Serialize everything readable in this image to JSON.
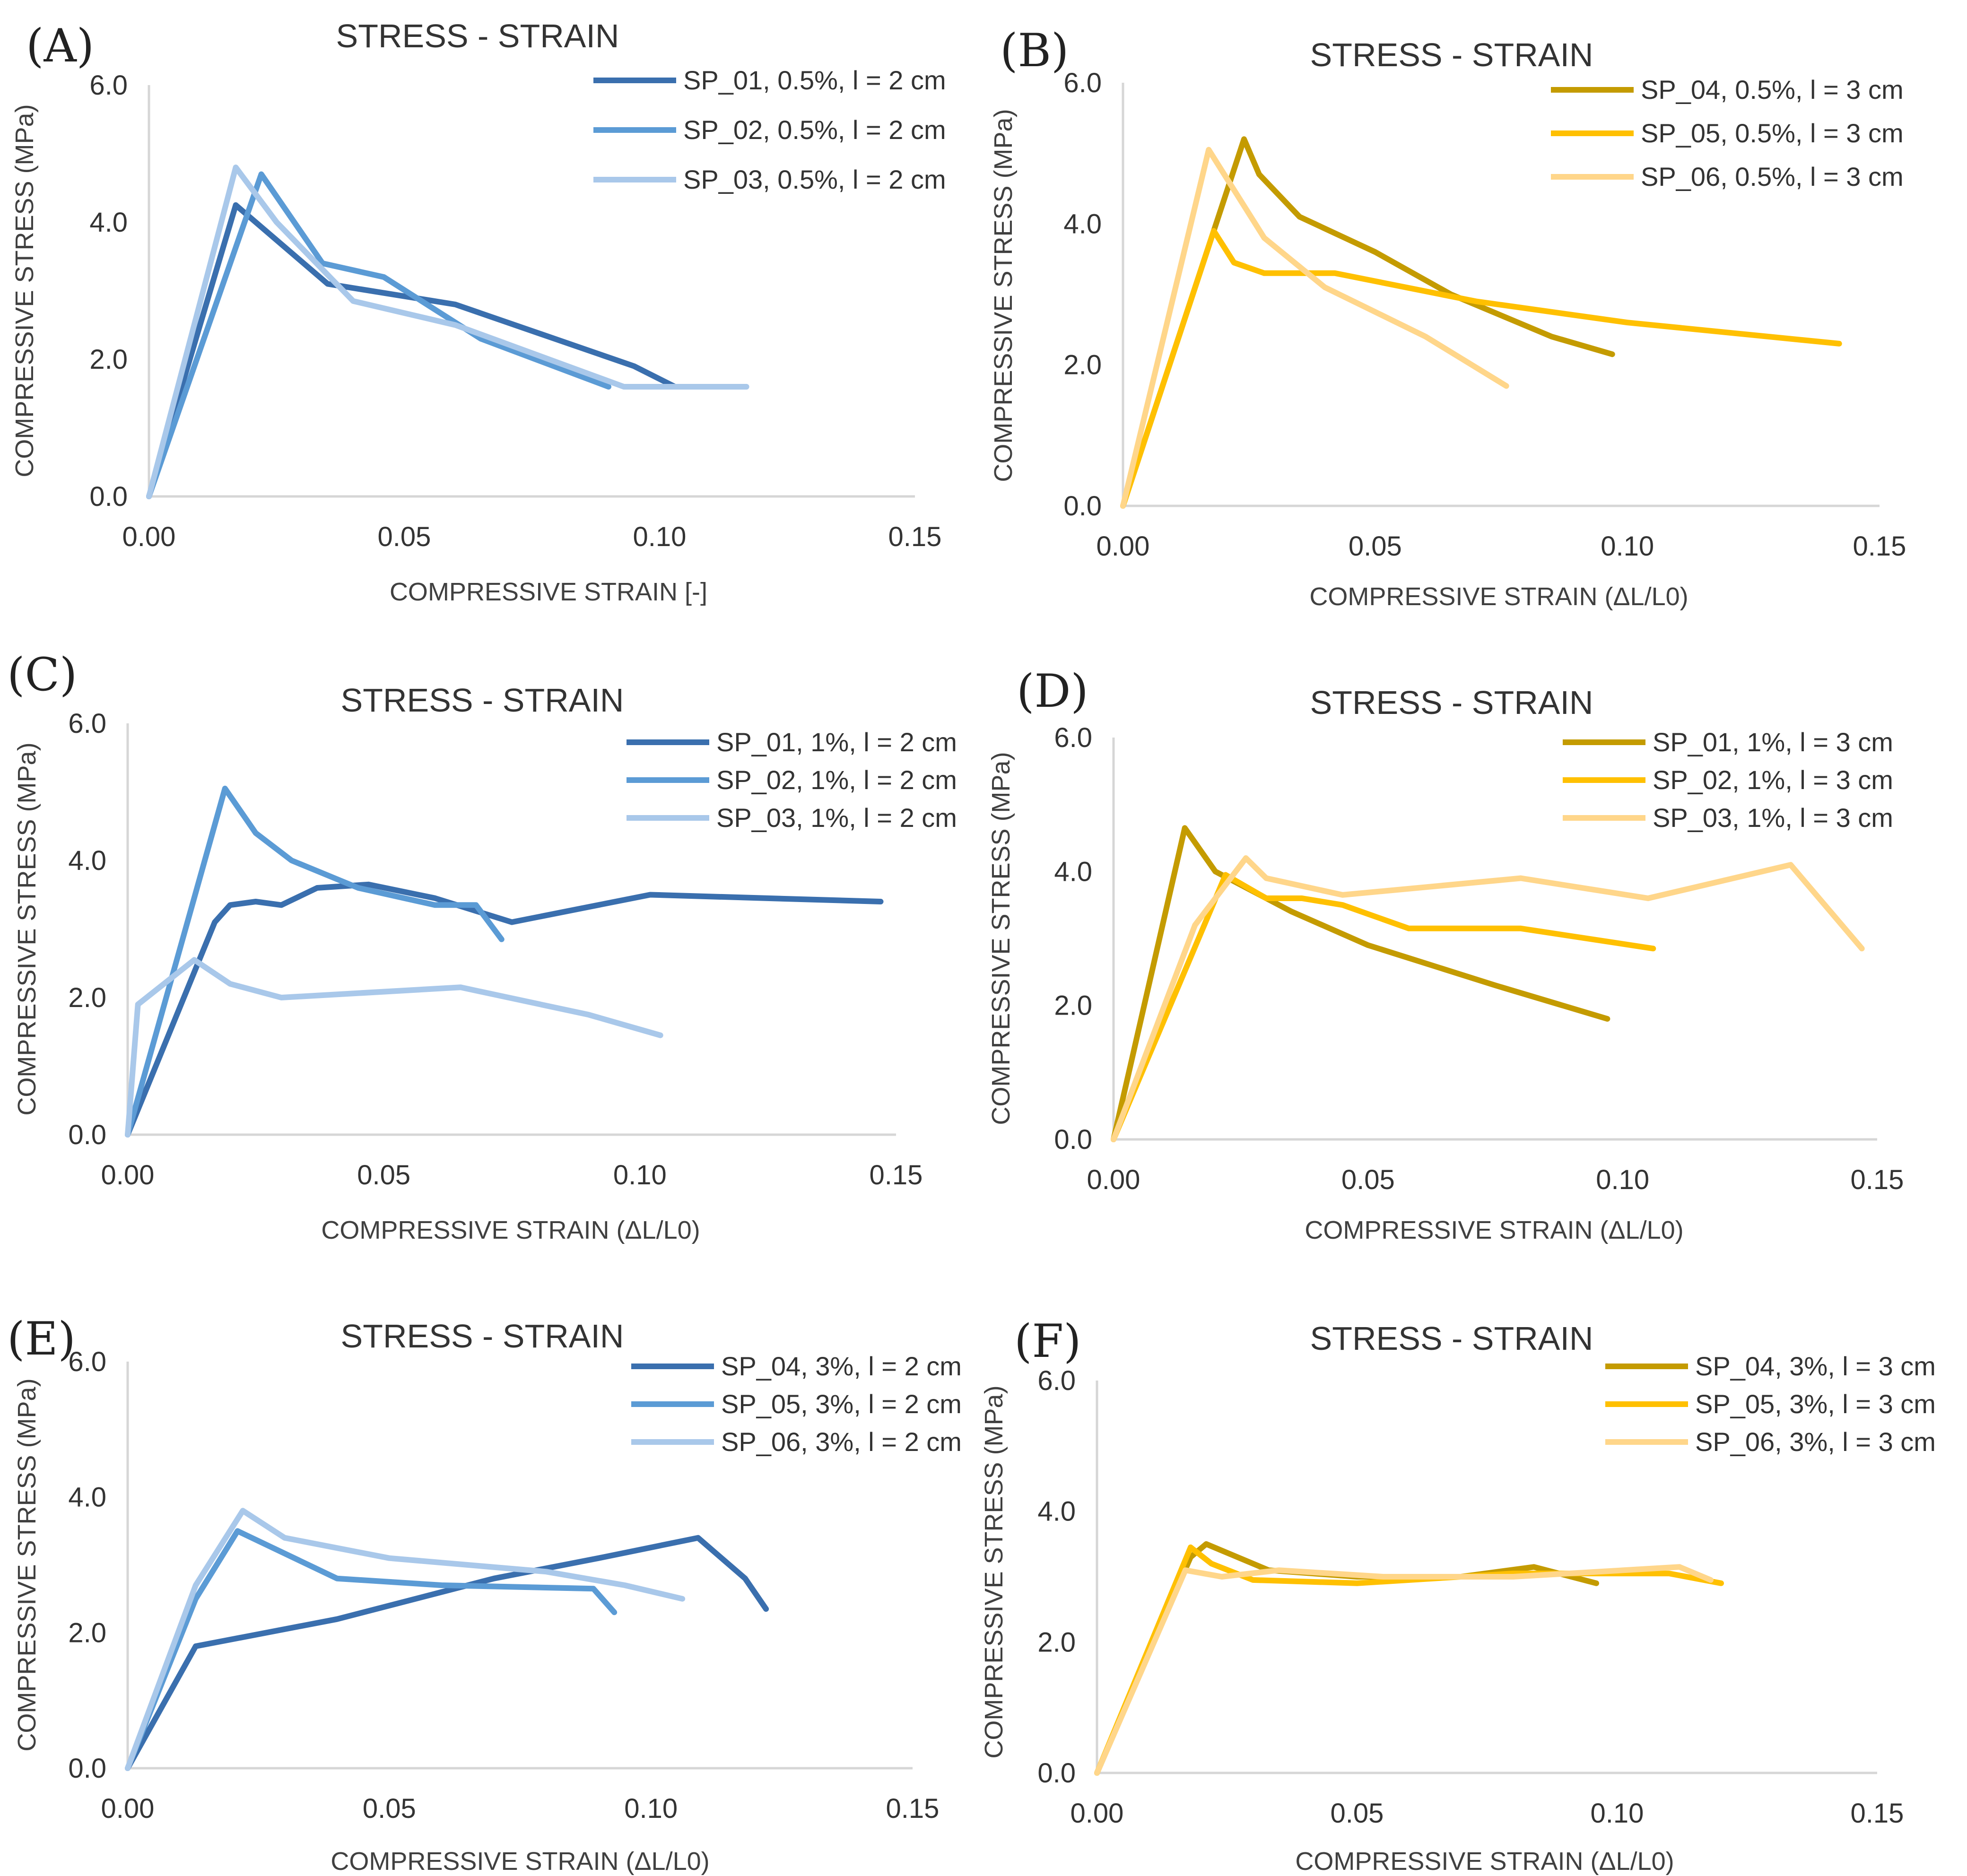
{
  "colors": {
    "blue_dark": "#3a6fae",
    "blue_mid": "#5b9bd5",
    "blue_light": "#a9c8ea",
    "gold_dark": "#c49b00",
    "gold_mid": "#ffc000",
    "gold_light": "#ffd68a",
    "text": "#333333",
    "axis": "#d6d6d6"
  },
  "chart_data": [
    {
      "panel": "(A)",
      "type": "line",
      "title": "STRESS - STRAIN",
      "xlabel": "COMPRESSIVE  STRAIN [-]",
      "ylabel": "COMPRESSIVE STRESS (MPa)",
      "xlim": [
        0,
        0.15
      ],
      "ylim": [
        0,
        6
      ],
      "xticks": [
        "0.00",
        "0.05",
        "0.10",
        "0.15"
      ],
      "yticks": [
        "0.0",
        "2.0",
        "4.0",
        "6.0"
      ],
      "legend_position": "top-right",
      "series": [
        {
          "name": "SP_01, 0.5%, l = 2 cm",
          "color": "blue_dark",
          "x": [
            0,
            0.017,
            0.035,
            0.06,
            0.095,
            0.103,
            0.115
          ],
          "y": [
            0,
            4.25,
            3.1,
            2.8,
            1.9,
            1.6,
            1.6
          ]
        },
        {
          "name": "SP_02, 0.5%, l = 2 cm",
          "color": "blue_mid",
          "x": [
            0,
            0.022,
            0.034,
            0.046,
            0.065,
            0.09
          ],
          "y": [
            0,
            4.7,
            3.4,
            3.2,
            2.3,
            1.6
          ]
        },
        {
          "name": "SP_03, 0.5%, l = 2 cm",
          "color": "blue_light",
          "x": [
            0,
            0.017,
            0.025,
            0.04,
            0.06,
            0.093,
            0.117
          ],
          "y": [
            0,
            4.8,
            4.0,
            2.85,
            2.5,
            1.6,
            1.6
          ]
        }
      ]
    },
    {
      "panel": "(B)",
      "type": "line",
      "title": "STRESS - STRAIN",
      "xlabel": "COMPRESSIVE STRAIN (ΔL/L0)",
      "ylabel": "COMPRESSIVE STRESS (MPa)",
      "xlim": [
        0,
        0.15
      ],
      "ylim": [
        0,
        6
      ],
      "xticks": [
        "0.00",
        "0.05",
        "0.10",
        "0.15"
      ],
      "yticks": [
        "0.0",
        "2.0",
        "4.0",
        "6.0"
      ],
      "legend_position": "top-right",
      "series": [
        {
          "name": "SP_04, 0.5%, l = 3 cm",
          "color": "gold_dark",
          "x": [
            0,
            0.024,
            0.027,
            0.035,
            0.05,
            0.065,
            0.085,
            0.097
          ],
          "y": [
            0,
            5.2,
            4.7,
            4.1,
            3.6,
            3.0,
            2.4,
            2.15
          ]
        },
        {
          "name": "SP_05, 0.5%, l = 3 cm",
          "color": "gold_mid",
          "x": [
            0,
            0.018,
            0.022,
            0.028,
            0.042,
            0.07,
            0.1,
            0.142
          ],
          "y": [
            0,
            3.9,
            3.45,
            3.3,
            3.3,
            2.9,
            2.6,
            2.3
          ]
        },
        {
          "name": "SP_06, 0.5%, l = 3 cm",
          "color": "gold_light",
          "x": [
            0,
            0.017,
            0.028,
            0.04,
            0.06,
            0.076
          ],
          "y": [
            0,
            5.05,
            3.8,
            3.1,
            2.4,
            1.7
          ]
        }
      ]
    },
    {
      "panel": "(C)",
      "type": "line",
      "title": "STRESS - STRAIN",
      "xlabel": "COMPRESSIVE STRAIN (ΔL/L0)",
      "ylabel": "COMPRESSIVE STRESS (MPa)",
      "xlim": [
        0,
        0.15
      ],
      "ylim": [
        0,
        6
      ],
      "xticks": [
        "0.00",
        "0.05",
        "0.10",
        "0.15"
      ],
      "yticks": [
        "0.0",
        "2.0",
        "4.0",
        "6.0"
      ],
      "legend_position": "top-right",
      "series": [
        {
          "name": "SP_01, 1%, l = 2 cm",
          "color": "blue_dark",
          "x": [
            0,
            0.017,
            0.02,
            0.025,
            0.03,
            0.037,
            0.047,
            0.06,
            0.075,
            0.102,
            0.147
          ],
          "y": [
            0,
            3.1,
            3.35,
            3.4,
            3.35,
            3.6,
            3.65,
            3.45,
            3.1,
            3.5,
            3.4
          ]
        },
        {
          "name": "SP_02, 1%, l = 2 cm",
          "color": "blue_mid",
          "x": [
            0,
            0.019,
            0.025,
            0.032,
            0.045,
            0.06,
            0.068,
            0.073
          ],
          "y": [
            0,
            5.05,
            4.4,
            4.0,
            3.6,
            3.35,
            3.35,
            2.85
          ]
        },
        {
          "name": "SP_03, 1%, l = 2 cm",
          "color": "blue_light",
          "x": [
            0,
            0.002,
            0.013,
            0.02,
            0.03,
            0.065,
            0.09,
            0.104
          ],
          "y": [
            0,
            1.9,
            2.55,
            2.2,
            2.0,
            2.15,
            1.75,
            1.45
          ]
        }
      ]
    },
    {
      "panel": "(D)",
      "type": "line",
      "title": "STRESS - STRAIN",
      "xlabel": "COMPRESSIVE STRAIN (ΔL/L0)",
      "ylabel": "COMPRESSIVE STRESS (MPa)",
      "xlim": [
        0,
        0.15
      ],
      "ylim": [
        0,
        6
      ],
      "xticks": [
        "0.00",
        "0.05",
        "0.10",
        "0.15"
      ],
      "yticks": [
        "0.0",
        "2.0",
        "4.0",
        "6.0"
      ],
      "legend_position": "top-right",
      "series": [
        {
          "name": "SP_01, 1%, l = 3 cm",
          "color": "gold_dark",
          "x": [
            0,
            0.014,
            0.02,
            0.035,
            0.05,
            0.075,
            0.097
          ],
          "y": [
            0,
            4.65,
            4.0,
            3.4,
            2.9,
            2.3,
            1.8
          ]
        },
        {
          "name": "SP_02, 1%, l = 3 cm",
          "color": "gold_mid",
          "x": [
            0,
            0.022,
            0.03,
            0.037,
            0.045,
            0.058,
            0.08,
            0.106
          ],
          "y": [
            0,
            3.95,
            3.6,
            3.6,
            3.5,
            3.15,
            3.15,
            2.85
          ]
        },
        {
          "name": "SP_03, 1%, l = 3 cm",
          "color": "gold_light",
          "x": [
            0,
            0.016,
            0.026,
            0.03,
            0.045,
            0.08,
            0.105,
            0.133,
            0.147
          ],
          "y": [
            0,
            3.2,
            4.2,
            3.9,
            3.65,
            3.9,
            3.6,
            4.1,
            2.85
          ]
        }
      ]
    },
    {
      "panel": "(E)",
      "type": "line",
      "title": "STRESS - STRAIN",
      "xlabel": "COMPRESSIVE STRAIN (ΔL/L0)",
      "ylabel": "COMPRESSIVE STRESS (MPa)",
      "xlim": [
        0,
        0.15
      ],
      "ylim": [
        0,
        6
      ],
      "xticks": [
        "0.00",
        "0.05",
        "0.10",
        "0.15"
      ],
      "yticks": [
        "0.0",
        "2.0",
        "4.0",
        "6.0"
      ],
      "legend_position": "top-right",
      "series": [
        {
          "name": "SP_04, 3%, l = 2 cm",
          "color": "blue_dark",
          "x": [
            0,
            0.013,
            0.04,
            0.07,
            0.09,
            0.109,
            0.118,
            0.122
          ],
          "y": [
            0,
            1.8,
            2.2,
            2.8,
            3.1,
            3.4,
            2.8,
            2.35
          ]
        },
        {
          "name": "SP_05, 3%, l = 2 cm",
          "color": "blue_mid",
          "x": [
            0,
            0.013,
            0.021,
            0.04,
            0.06,
            0.089,
            0.093
          ],
          "y": [
            0,
            2.5,
            3.5,
            2.8,
            2.7,
            2.65,
            2.3
          ]
        },
        {
          "name": "SP_06, 3%, l = 2 cm",
          "color": "blue_light",
          "x": [
            0,
            0.013,
            0.022,
            0.03,
            0.05,
            0.08,
            0.095,
            0.106
          ],
          "y": [
            0,
            2.7,
            3.8,
            3.4,
            3.1,
            2.9,
            2.7,
            2.5
          ]
        }
      ]
    },
    {
      "panel": "(F)",
      "type": "line",
      "title": "STRESS - STRAIN",
      "xlabel": "COMPRESSIVE STRAIN (ΔL/L0)",
      "ylabel": "COMPRESSIVE STRESS (MPa)",
      "xlim": [
        0,
        0.15
      ],
      "ylim": [
        0,
        6
      ],
      "xticks": [
        "0.00",
        "0.05",
        "0.10",
        "0.15"
      ],
      "yticks": [
        "0.0",
        "2.0",
        "4.0",
        "6.0"
      ],
      "legend_position": "top-right",
      "series": [
        {
          "name": "SP_04, 3%, l = 3 cm",
          "color": "gold_dark",
          "x": [
            0,
            0.018,
            0.021,
            0.033,
            0.05,
            0.07,
            0.084,
            0.096
          ],
          "y": [
            0,
            3.3,
            3.5,
            3.1,
            3.0,
            3.0,
            3.15,
            2.9
          ]
        },
        {
          "name": "SP_05, 3%, l = 3 cm",
          "color": "gold_mid",
          "x": [
            0,
            0.018,
            0.022,
            0.03,
            0.05,
            0.08,
            0.11,
            0.12
          ],
          "y": [
            0,
            3.45,
            3.2,
            2.95,
            2.9,
            3.05,
            3.05,
            2.9
          ]
        },
        {
          "name": "SP_06, 3%, l = 3 cm",
          "color": "gold_light",
          "x": [
            0,
            0.017,
            0.024,
            0.035,
            0.055,
            0.08,
            0.112,
            0.118
          ],
          "y": [
            0,
            3.1,
            3.0,
            3.1,
            3.0,
            3.0,
            3.15,
            2.95
          ]
        }
      ]
    }
  ]
}
